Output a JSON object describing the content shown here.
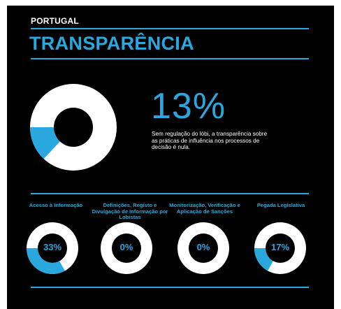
{
  "colors": {
    "background": "#000000",
    "accent": "#29a8e0",
    "ring": "#ffffff"
  },
  "header": {
    "country": "PORTUGAL",
    "title": "TRANSPARÊNCIA"
  },
  "summary": {
    "percent_label": "13%",
    "description": "Sem regulação do lóbi, a transparência sobre as práticas de influência nos processos de decisão é nula."
  },
  "chart_data": {
    "type": "pie",
    "main": {
      "label": "13%",
      "value": 13
    },
    "categories": [
      "Acesso à Informação",
      "Definições, Registo e Divulgação de Informação por Lobistas",
      "Monitorização, Verificação e Aplicação de Sanções",
      "Pegada Legislativa"
    ],
    "values": [
      33,
      0,
      0,
      17
    ],
    "value_labels": [
      "33%",
      "0%",
      "0%",
      "17%"
    ]
  }
}
